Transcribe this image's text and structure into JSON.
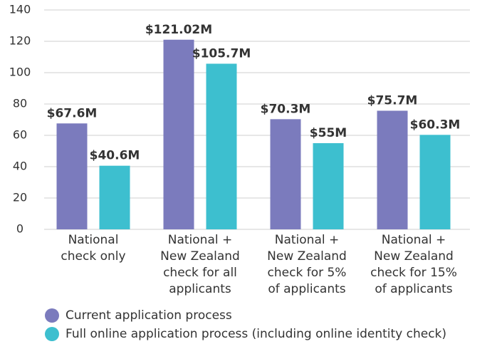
{
  "chart_data": {
    "type": "bar",
    "categories": [
      [
        "National",
        "check only"
      ],
      [
        "National +",
        "New Zealand",
        "check for all",
        "applicants"
      ],
      [
        "National +",
        "New Zealand",
        "check for 5%",
        "of applicants"
      ],
      [
        "National +",
        "New Zealand",
        "check for 15%",
        "of applicants"
      ]
    ],
    "series": [
      {
        "name": "Current application process",
        "color": "#7b7bbd",
        "values": [
          67.6,
          121.02,
          70.3,
          75.7
        ],
        "value_labels": [
          "$67.6M",
          "$121.02M",
          "$70.3M",
          "$75.7M"
        ]
      },
      {
        "name": "Full online application process (including online identity check)",
        "color": "#3dbfcf",
        "values": [
          40.6,
          105.7,
          55,
          60.3
        ],
        "value_labels": [
          "$40.6M",
          "$105.7M",
          "$55M",
          "$60.3M"
        ]
      }
    ],
    "ylim": [
      0,
      140
    ],
    "yticks": [
      0,
      20,
      40,
      60,
      80,
      100,
      120,
      140
    ],
    "grid": true,
    "legend": "bottom"
  }
}
